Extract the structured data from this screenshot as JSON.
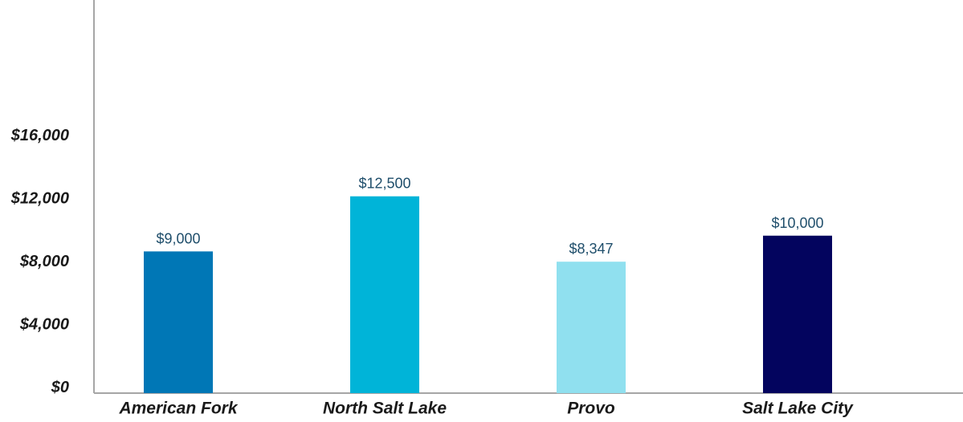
{
  "chart_data": {
    "type": "bar",
    "categories": [
      "American Fork",
      "North Salt Lake",
      "Provo",
      "Salt Lake City"
    ],
    "values": [
      9000,
      12500,
      8347,
      10000
    ],
    "value_labels": [
      "$9,000",
      "$12,500",
      "$8,347",
      "$10,000"
    ],
    "bar_colors": [
      "#0077b6",
      "#00b4d8",
      "#90e0ef",
      "#03045e"
    ],
    "y_ticks": [
      0,
      4000,
      8000,
      12000,
      16000
    ],
    "y_tick_labels": [
      "$0",
      "$4,000",
      "$8,000",
      "$12,000",
      "$16,000"
    ],
    "ylim": [
      0,
      24000
    ],
    "title": "",
    "xlabel": "",
    "ylabel": "",
    "grid": false,
    "legend": "none"
  }
}
